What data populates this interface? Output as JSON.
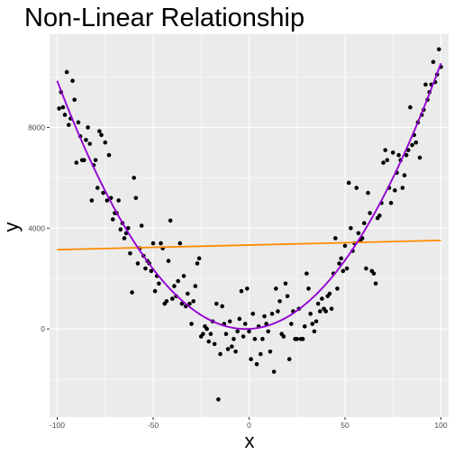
{
  "chart_data": {
    "type": "scatter",
    "title": "Non-Linear Relationship",
    "xlabel": "x",
    "ylabel": "y",
    "xlim": [
      -104,
      104
    ],
    "ylim": [
      -3500,
      11700
    ],
    "x_ticks": [
      -100,
      -50,
      0,
      50,
      100
    ],
    "x_tick_labels": [
      "-100",
      "-50",
      "0",
      "50",
      "100"
    ],
    "y_ticks": [
      0,
      4000,
      8000
    ],
    "y_tick_labels": [
      "0",
      "4000",
      "8000"
    ],
    "grid": true,
    "legend": "none",
    "colors": {
      "panel_background": "#ebebeb",
      "grid_major": "#ffffff",
      "points": "#000000",
      "quadratic_fit": "#9400d3",
      "linear_fit": "#ff8c00"
    },
    "series": [
      {
        "type": "scatter",
        "points": [
          [
            -99,
            8750
          ],
          [
            -98,
            9400
          ],
          [
            -97,
            8800
          ],
          [
            -96,
            8500
          ],
          [
            -95,
            10200
          ],
          [
            -94,
            8100
          ],
          [
            -93,
            8350
          ],
          [
            -92,
            9850
          ],
          [
            -91,
            9100
          ],
          [
            -90,
            6600
          ],
          [
            -89,
            8200
          ],
          [
            -88,
            7650
          ],
          [
            -87,
            6700
          ],
          [
            -86,
            6700
          ],
          [
            -85,
            7500
          ],
          [
            -84,
            8000
          ],
          [
            -83,
            7350
          ],
          [
            -82,
            5100
          ],
          [
            -81,
            6500
          ],
          [
            -80,
            6700
          ],
          [
            -79,
            5600
          ],
          [
            -78,
            7850
          ],
          [
            -77,
            7700
          ],
          [
            -76,
            5400
          ],
          [
            -75,
            7400
          ],
          [
            -74,
            5100
          ],
          [
            -73,
            6900
          ],
          [
            -72,
            5200
          ],
          [
            -71,
            4350
          ],
          [
            -70,
            4600
          ],
          [
            -69,
            4600
          ],
          [
            -68,
            5100
          ],
          [
            -67,
            3950
          ],
          [
            -66,
            4200
          ],
          [
            -65,
            3600
          ],
          [
            -64,
            3800
          ],
          [
            -63,
            4000
          ],
          [
            -62,
            3000
          ],
          [
            -61,
            1450
          ],
          [
            -60,
            6000
          ],
          [
            -59,
            5200
          ],
          [
            -58,
            2600
          ],
          [
            -57,
            3200
          ],
          [
            -56,
            4100
          ],
          [
            -55,
            2900
          ],
          [
            -54,
            2400
          ],
          [
            -53,
            2700
          ],
          [
            -52,
            2600
          ],
          [
            -51,
            2300
          ],
          [
            -50,
            3400
          ],
          [
            -49,
            1500
          ],
          [
            -48,
            2100
          ],
          [
            -47,
            1800
          ],
          [
            -46,
            3400
          ],
          [
            -45,
            3200
          ],
          [
            -44,
            1000
          ],
          [
            -43,
            1100
          ],
          [
            -42,
            2700
          ],
          [
            -41,
            4300
          ],
          [
            -40,
            1200
          ],
          [
            -39,
            1700
          ],
          [
            -38,
            1300
          ],
          [
            -37,
            1900
          ],
          [
            -36,
            3400
          ],
          [
            -35,
            1000
          ],
          [
            -34,
            2100
          ],
          [
            -33,
            900
          ],
          [
            -32,
            1400
          ],
          [
            -31,
            1000
          ],
          [
            -30,
            200
          ],
          [
            -29,
            1100
          ],
          [
            -28,
            1700
          ],
          [
            -27,
            2600
          ],
          [
            -26,
            2800
          ],
          [
            -25,
            -300
          ],
          [
            -24,
            -200
          ],
          [
            -23,
            100
          ],
          [
            -22,
            0
          ],
          [
            -21,
            -500
          ],
          [
            -20,
            -200
          ],
          [
            -19,
            300
          ],
          [
            -18,
            -600
          ],
          [
            -17,
            1000
          ],
          [
            -16,
            -2800
          ],
          [
            -15,
            -1000
          ],
          [
            -14,
            900
          ],
          [
            -13,
            200
          ],
          [
            -12,
            -200
          ],
          [
            -11,
            -800
          ],
          [
            -10,
            300
          ],
          [
            -9,
            -700
          ],
          [
            -8,
            -400
          ],
          [
            -7,
            -900
          ],
          [
            -6,
            -100
          ],
          [
            -5,
            400
          ],
          [
            -4,
            1500
          ],
          [
            -3,
            -300
          ],
          [
            -2,
            200
          ],
          [
            -1,
            1600
          ],
          [
            0,
            -100
          ],
          [
            1,
            -1200
          ],
          [
            2,
            600
          ],
          [
            3,
            -400
          ],
          [
            4,
            -1400
          ],
          [
            5,
            100
          ],
          [
            6,
            -1000
          ],
          [
            7,
            -400
          ],
          [
            8,
            500
          ],
          [
            9,
            200
          ],
          [
            10,
            -100
          ],
          [
            11,
            -900
          ],
          [
            12,
            600
          ],
          [
            13,
            -1700
          ],
          [
            14,
            1600
          ],
          [
            15,
            700
          ],
          [
            16,
            1100
          ],
          [
            17,
            -200
          ],
          [
            18,
            -300
          ],
          [
            19,
            1800
          ],
          [
            20,
            1300
          ],
          [
            21,
            -1200
          ],
          [
            22,
            200
          ],
          [
            23,
            700
          ],
          [
            24,
            -400
          ],
          [
            25,
            -400
          ],
          [
            26,
            800
          ],
          [
            27,
            -400
          ],
          [
            28,
            -400
          ],
          [
            29,
            100
          ],
          [
            30,
            2200
          ],
          [
            31,
            1600
          ],
          [
            32,
            600
          ],
          [
            33,
            200
          ],
          [
            34,
            -100
          ],
          [
            35,
            300
          ],
          [
            36,
            1000
          ],
          [
            37,
            700
          ],
          [
            38,
            1200
          ],
          [
            39,
            800
          ],
          [
            40,
            700
          ],
          [
            41,
            1300
          ],
          [
            42,
            1400
          ],
          [
            43,
            800
          ],
          [
            44,
            2200
          ],
          [
            45,
            3600
          ],
          [
            46,
            1600
          ],
          [
            47,
            2600
          ],
          [
            48,
            2800
          ],
          [
            49,
            2300
          ],
          [
            50,
            3300
          ],
          [
            51,
            2400
          ],
          [
            52,
            5800
          ],
          [
            53,
            4000
          ],
          [
            54,
            3100
          ],
          [
            55,
            3400
          ],
          [
            56,
            5600
          ],
          [
            57,
            3800
          ],
          [
            58,
            3500
          ],
          [
            59,
            3600
          ],
          [
            60,
            4200
          ],
          [
            61,
            2400
          ],
          [
            62,
            5400
          ],
          [
            63,
            4600
          ],
          [
            64,
            2300
          ],
          [
            65,
            2200
          ],
          [
            66,
            1800
          ],
          [
            67,
            4400
          ],
          [
            68,
            4500
          ],
          [
            69,
            5000
          ],
          [
            70,
            6600
          ],
          [
            71,
            7100
          ],
          [
            72,
            6700
          ],
          [
            73,
            5600
          ],
          [
            74,
            5000
          ],
          [
            75,
            7000
          ],
          [
            76,
            5500
          ],
          [
            77,
            6200
          ],
          [
            78,
            6900
          ],
          [
            79,
            6700
          ],
          [
            80,
            5600
          ],
          [
            81,
            6100
          ],
          [
            82,
            6900
          ],
          [
            83,
            7100
          ],
          [
            84,
            8800
          ],
          [
            85,
            7300
          ],
          [
            86,
            7700
          ],
          [
            87,
            7400
          ],
          [
            88,
            8200
          ],
          [
            89,
            6800
          ],
          [
            90,
            8500
          ],
          [
            91,
            8700
          ],
          [
            92,
            9700
          ],
          [
            93,
            9100
          ],
          [
            94,
            9400
          ],
          [
            95,
            9700
          ],
          [
            96,
            10600
          ],
          [
            97,
            9800
          ],
          [
            98,
            10100
          ],
          [
            99,
            11100
          ],
          [
            100,
            10400
          ]
        ]
      },
      {
        "name": "",
        "type": "line",
        "fit": "quadratic",
        "coefficients": {
          "a": 1.02,
          "b": 3.5,
          "c": 0
        },
        "x_range": [
          -100,
          100
        ]
      },
      {
        "name": "",
        "type": "line",
        "fit": "linear",
        "coefficients": {
          "slope": 1.85,
          "intercept": 3330
        },
        "x_range": [
          -100,
          100
        ]
      }
    ]
  }
}
